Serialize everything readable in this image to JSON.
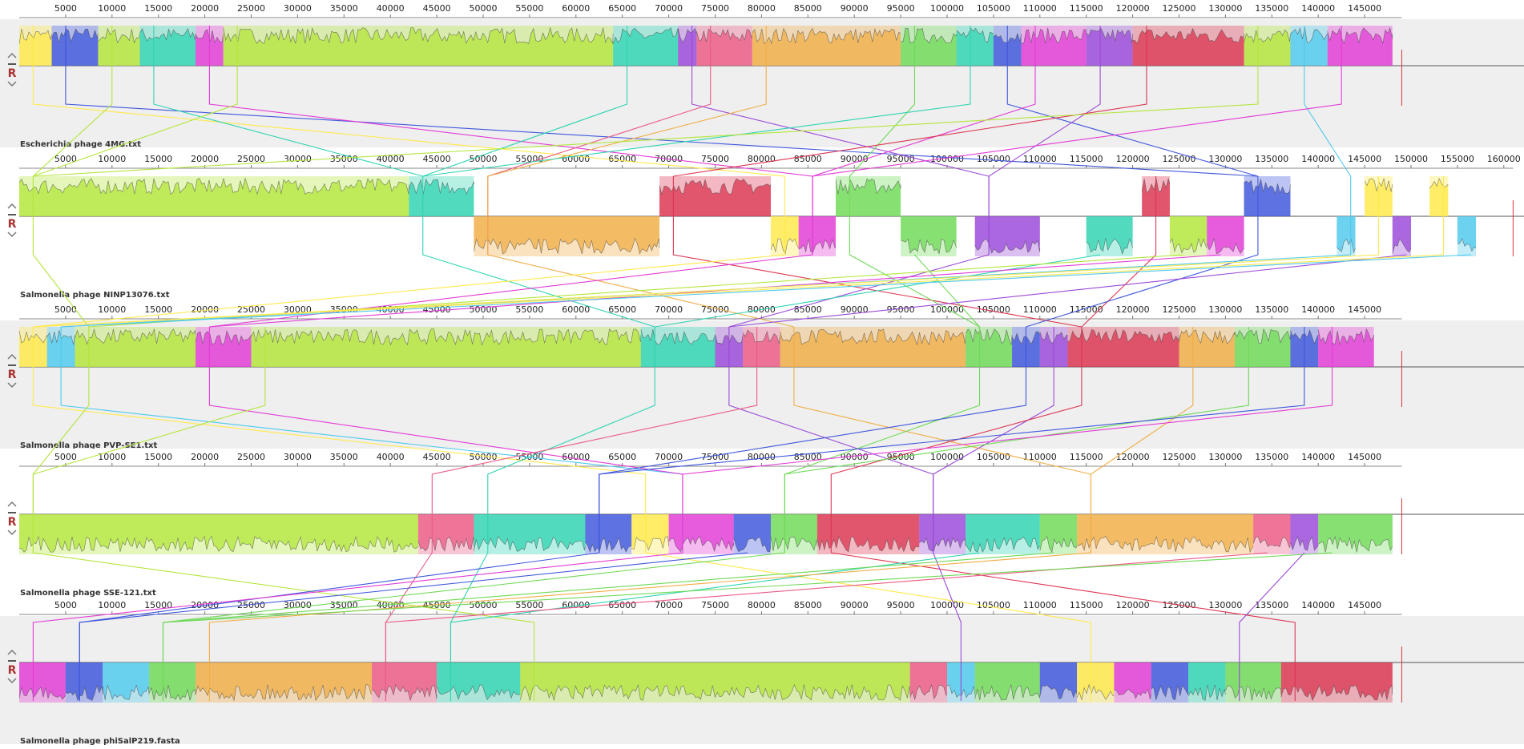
{
  "panels": [
    {
      "name": "Escherichia phage 4MG.txt",
      "button": "R",
      "ticks": [
        5000,
        10000,
        15000,
        20000,
        25000,
        30000,
        35000,
        40000,
        45000,
        50000,
        55000,
        60000,
        65000,
        70000,
        75000,
        80000,
        85000,
        90000,
        95000,
        100000,
        105000,
        110000,
        115000,
        120000,
        125000,
        130000,
        135000,
        140000,
        145000
      ]
    },
    {
      "name": "Salmonella phage NINP13076.txt",
      "button": "R",
      "ticks": [
        5000,
        10000,
        15000,
        20000,
        25000,
        30000,
        35000,
        40000,
        45000,
        50000,
        55000,
        60000,
        65000,
        70000,
        75000,
        80000,
        85000,
        90000,
        95000,
        100000,
        105000,
        110000,
        115000,
        120000,
        125000,
        130000,
        135000,
        140000,
        145000,
        150000,
        155000,
        160000
      ]
    },
    {
      "name": "Salmonella phage PVP-SE1.txt",
      "button": "R",
      "ticks": [
        5000,
        10000,
        15000,
        20000,
        25000,
        30000,
        35000,
        40000,
        45000,
        50000,
        55000,
        60000,
        65000,
        70000,
        75000,
        80000,
        85000,
        90000,
        95000,
        100000,
        105000,
        110000,
        115000,
        120000,
        125000,
        130000,
        135000,
        140000,
        145000
      ]
    },
    {
      "name": "Salmonella phage SSE-121.txt",
      "button": "R",
      "ticks": [
        5000,
        10000,
        15000,
        20000,
        25000,
        30000,
        35000,
        40000,
        45000,
        50000,
        55000,
        60000,
        65000,
        70000,
        75000,
        80000,
        85000,
        90000,
        95000,
        100000,
        105000,
        110000,
        115000,
        120000,
        125000,
        130000,
        135000,
        140000,
        145000
      ]
    },
    {
      "name": "Salmonella phage phiSalP219.fasta",
      "button": "R",
      "ticks": [
        5000,
        10000,
        15000,
        20000,
        25000,
        30000,
        35000,
        40000,
        45000,
        50000,
        55000,
        60000,
        65000,
        70000,
        75000,
        80000,
        85000,
        90000,
        95000,
        100000,
        105000,
        110000,
        115000,
        120000,
        125000,
        130000,
        135000,
        140000,
        145000
      ]
    }
  ]
}
